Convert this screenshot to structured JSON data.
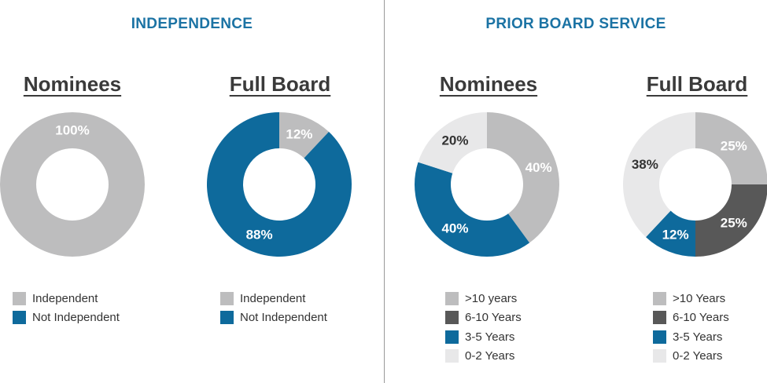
{
  "sections": [
    {
      "title": "INDEPENDENCE"
    },
    {
      "title": "PRIOR BOARD SERVICE"
    }
  ],
  "colors": {
    "independent": "#bdbdbe",
    "not_independent": "#0e6a9c",
    "over10": "#bdbdbe",
    "y6_10": "#585858",
    "y3_5": "#0e6a9c",
    "y0_2": "#e8e8e9",
    "title_blue": "#1b73a4"
  },
  "chart_data": [
    {
      "type": "pie",
      "section": "INDEPENDENCE",
      "title": "Nominees",
      "categories": [
        "Independent",
        "Not Independent"
      ],
      "values": [
        100,
        0
      ],
      "labels": [
        "100%",
        ""
      ],
      "legend": [
        "Independent",
        "Not Independent"
      ],
      "legend_position": "bottom"
    },
    {
      "type": "pie",
      "section": "INDEPENDENCE",
      "title": "Full Board",
      "categories": [
        "Independent",
        "Not Independent"
      ],
      "values": [
        12,
        88
      ],
      "labels": [
        "12%",
        "88%"
      ],
      "legend": [
        "Independent",
        "Not Independent"
      ],
      "legend_position": "bottom"
    },
    {
      "type": "pie",
      "section": "PRIOR BOARD SERVICE",
      "title": "Nominees",
      "categories": [
        ">10 years",
        "6-10 Years",
        "3-5 Years",
        "0-2 Years"
      ],
      "values": [
        40,
        0,
        40,
        20
      ],
      "labels": [
        "40%",
        "",
        "40%",
        "20%"
      ],
      "legend": [
        ">10 years",
        "6-10 Years",
        "3-5 Years",
        "0-2 Years"
      ],
      "legend_position": "bottom"
    },
    {
      "type": "pie",
      "section": "PRIOR BOARD SERVICE",
      "title": "Full Board",
      "categories": [
        ">10 Years",
        "6-10 Years",
        "3-5 Years",
        "0-2 Years"
      ],
      "values": [
        25,
        25,
        12,
        38
      ],
      "labels": [
        "25%",
        "25%",
        "12%",
        "38%"
      ],
      "legend": [
        ">10 Years",
        "6-10 Years",
        "3-5 Years",
        "0-2 Years"
      ],
      "legend_position": "bottom"
    }
  ]
}
